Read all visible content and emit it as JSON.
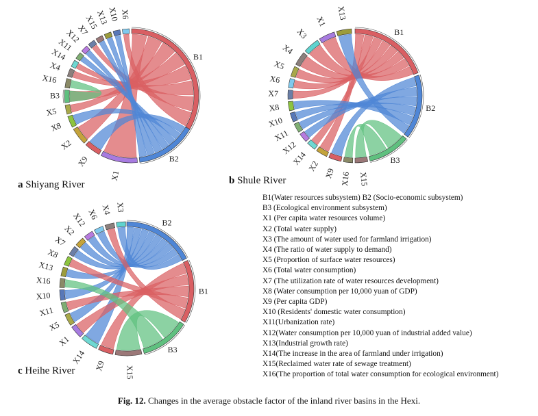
{
  "colors": {
    "B1": "#d95f63",
    "B2": "#4f86d6",
    "B3": "#5fc07f",
    "X1": "#a77be0",
    "X2": "#c4a33b",
    "X3": "#5fd3cf",
    "X4": "#8b7f7c",
    "X5": "#a8a84a",
    "X6": "#7fc9ee",
    "X7": "#6b7fa8",
    "X8": "#8dc43f",
    "X9": "#d95f63",
    "X10": "#5878b8",
    "X11": "#7fae73",
    "X12": "#b77be0",
    "X13": "#9c9c3c",
    "X14": "#6fd8d2",
    "X15": "#9b7878",
    "X16": "#8a8a66"
  },
  "panels": [
    {
      "id": "a",
      "letter": "a",
      "title": "Shiyang River",
      "segments": [
        {
          "name": "B1",
          "start": 0,
          "end": 120,
          "label": "B1"
        },
        {
          "name": "B2",
          "start": 120,
          "end": 173,
          "label": "B2"
        },
        {
          "name": "X1",
          "start": 175,
          "end": 207,
          "label": "X1"
        },
        {
          "name": "X9",
          "start": 209,
          "end": 223,
          "label": "X9"
        },
        {
          "name": "X2",
          "start": 225,
          "end": 240,
          "label": "X2"
        },
        {
          "name": "X8",
          "start": 242,
          "end": 252,
          "label": "X8"
        },
        {
          "name": "X5",
          "start": 254,
          "end": 262,
          "label": "X5"
        },
        {
          "name": "B3",
          "start": 264,
          "end": 275,
          "label": "B3"
        },
        {
          "name": "X16",
          "start": 277,
          "end": 285,
          "label": "X16"
        },
        {
          "name": "X4",
          "start": 287,
          "end": 294,
          "label": "X4"
        },
        {
          "name": "X14",
          "start": 296,
          "end": 302,
          "label": "X14"
        },
        {
          "name": "X11",
          "start": 304,
          "end": 310,
          "label": "X11"
        },
        {
          "name": "X12",
          "start": 312,
          "end": 318,
          "label": "X12"
        },
        {
          "name": "X7",
          "start": 320,
          "end": 326,
          "label": "X7"
        },
        {
          "name": "X15",
          "start": 328,
          "end": 334,
          "label": "X15"
        },
        {
          "name": "X13",
          "start": 336,
          "end": 342,
          "label": "X13"
        },
        {
          "name": "X10",
          "start": 344,
          "end": 350,
          "label": "X10"
        },
        {
          "name": "X6",
          "start": 352,
          "end": 358,
          "label": "X6"
        }
      ],
      "chords": [
        {
          "from": "X1",
          "to": "B1"
        },
        {
          "from": "X9",
          "to": "B2"
        },
        {
          "from": "X2",
          "to": "B1"
        },
        {
          "from": "X8",
          "to": "B2"
        },
        {
          "from": "X5",
          "to": "B1"
        },
        {
          "from": "B3",
          "to": "B1"
        },
        {
          "from": "X16",
          "to": "B3"
        },
        {
          "from": "X4",
          "to": "B1"
        },
        {
          "from": "X14",
          "to": "B1"
        },
        {
          "from": "X11",
          "to": "B2"
        },
        {
          "from": "X12",
          "to": "B2"
        },
        {
          "from": "X7",
          "to": "B1"
        },
        {
          "from": "X15",
          "to": "B2"
        },
        {
          "from": "X13",
          "to": "B2"
        },
        {
          "from": "X10",
          "to": "B2"
        },
        {
          "from": "X6",
          "to": "B1"
        }
      ]
    },
    {
      "id": "b",
      "letter": "b",
      "title": "Shule River",
      "segments": [
        {
          "name": "B1",
          "start": 0,
          "end": 70,
          "label": "B1"
        },
        {
          "name": "B2",
          "start": 72,
          "end": 128,
          "label": "B2"
        },
        {
          "name": "B3",
          "start": 130,
          "end": 167,
          "label": "B3"
        },
        {
          "name": "X15",
          "start": 169,
          "end": 180,
          "label": "X15"
        },
        {
          "name": "X16",
          "start": 182,
          "end": 190,
          "label": "X16"
        },
        {
          "name": "X9",
          "start": 192,
          "end": 203,
          "label": "X9"
        },
        {
          "name": "X2",
          "start": 205,
          "end": 215,
          "label": "X2"
        },
        {
          "name": "X14",
          "start": 217,
          "end": 225,
          "label": "X14"
        },
        {
          "name": "X12",
          "start": 227,
          "end": 235,
          "label": "X12"
        },
        {
          "name": "X11",
          "start": 237,
          "end": 245,
          "label": "X11"
        },
        {
          "name": "X10",
          "start": 247,
          "end": 255,
          "label": "X10"
        },
        {
          "name": "X8",
          "start": 257,
          "end": 265,
          "label": "X8"
        },
        {
          "name": "X7",
          "start": 267,
          "end": 275,
          "label": "X7"
        },
        {
          "name": "X6",
          "start": 277,
          "end": 285,
          "label": "X6"
        },
        {
          "name": "X5",
          "start": 287,
          "end": 296,
          "label": "X5"
        },
        {
          "name": "X4",
          "start": 298,
          "end": 310,
          "label": "X4"
        },
        {
          "name": "X3",
          "start": 312,
          "end": 326,
          "label": "X3"
        },
        {
          "name": "X1",
          "start": 328,
          "end": 342,
          "label": "X1"
        },
        {
          "name": "X13",
          "start": 344,
          "end": 357,
          "label": "X13"
        }
      ],
      "chords": [
        {
          "from": "X15",
          "to": "B3"
        },
        {
          "from": "X16",
          "to": "B3"
        },
        {
          "from": "X9",
          "to": "B2"
        },
        {
          "from": "X2",
          "to": "B1"
        },
        {
          "from": "X14",
          "to": "B1"
        },
        {
          "from": "X12",
          "to": "B2"
        },
        {
          "from": "X11",
          "to": "B2"
        },
        {
          "from": "X10",
          "to": "B2"
        },
        {
          "from": "X8",
          "to": "B2"
        },
        {
          "from": "X7",
          "to": "B1"
        },
        {
          "from": "X6",
          "to": "B1"
        },
        {
          "from": "X5",
          "to": "B1"
        },
        {
          "from": "X4",
          "to": "B1"
        },
        {
          "from": "X3",
          "to": "B1"
        },
        {
          "from": "X1",
          "to": "B1"
        },
        {
          "from": "X13",
          "to": "B2"
        }
      ]
    },
    {
      "id": "c",
      "letter": "c",
      "title": "Heihe River",
      "segments": [
        {
          "name": "B2",
          "start": 0,
          "end": 63,
          "label": "B2"
        },
        {
          "name": "B1",
          "start": 65,
          "end": 120,
          "label": "B1"
        },
        {
          "name": "B3",
          "start": 122,
          "end": 165,
          "label": "B3"
        },
        {
          "name": "X15",
          "start": 167,
          "end": 190,
          "label": "X15"
        },
        {
          "name": "X9",
          "start": 192,
          "end": 205,
          "label": "X9"
        },
        {
          "name": "X14",
          "start": 207,
          "end": 222,
          "label": "X14"
        },
        {
          "name": "X1",
          "start": 224,
          "end": 235,
          "label": "X1"
        },
        {
          "name": "X5",
          "start": 237,
          "end": 247,
          "label": "X5"
        },
        {
          "name": "X11",
          "start": 249,
          "end": 258,
          "label": "X11"
        },
        {
          "name": "X10",
          "start": 260,
          "end": 269,
          "label": "X10"
        },
        {
          "name": "X16",
          "start": 271,
          "end": 279,
          "label": "X16"
        },
        {
          "name": "X13",
          "start": 281,
          "end": 289,
          "label": "X13"
        },
        {
          "name": "X8",
          "start": 291,
          "end": 299,
          "label": "X8"
        },
        {
          "name": "X7",
          "start": 301,
          "end": 309,
          "label": "X7"
        },
        {
          "name": "X2",
          "start": 311,
          "end": 319,
          "label": "X2"
        },
        {
          "name": "X12",
          "start": 321,
          "end": 329,
          "label": "X12"
        },
        {
          "name": "X6",
          "start": 331,
          "end": 339,
          "label": "X6"
        },
        {
          "name": "X4",
          "start": 341,
          "end": 349,
          "label": "X4"
        },
        {
          "name": "X3",
          "start": 351,
          "end": 359,
          "label": "X3"
        }
      ],
      "chords": [
        {
          "from": "X15",
          "to": "B3"
        },
        {
          "from": "X9",
          "to": "B1"
        },
        {
          "from": "X14",
          "to": "B2"
        },
        {
          "from": "X1",
          "to": "B1"
        },
        {
          "from": "X5",
          "to": "B2"
        },
        {
          "from": "X11",
          "to": "B1"
        },
        {
          "from": "X10",
          "to": "B2"
        },
        {
          "from": "X16",
          "to": "B3"
        },
        {
          "from": "X13",
          "to": "B2"
        },
        {
          "from": "X8",
          "to": "B1"
        },
        {
          "from": "X7",
          "to": "B2"
        },
        {
          "from": "X2",
          "to": "B2"
        },
        {
          "from": "X12",
          "to": "B2"
        },
        {
          "from": "X6",
          "to": "B2"
        },
        {
          "from": "X4",
          "to": "B1"
        },
        {
          "from": "X3",
          "to": "B2"
        }
      ]
    }
  ],
  "legend": [
    "B1(Water resources subsystem) B2 (Socio-economic subsystem)",
    "B3 (Ecological environment subsystem)",
    "X1 (Per capita water resources volume)",
    "X2 (Total water supply)",
    "X3 (The amount of water used for farmland irrigation)",
    "X4 (The ratio of water supply to demand)",
    "X5 (Proportion of surface water resources)",
    "X6 (Total water consumption)",
    "X7 (The utilization rate of water resources development)",
    "X8 (Water consumption per 10,000 yuan of GDP)",
    "X9 (Per capita GDP)",
    "X10 (Residents' domestic water consumption)",
    "X11(Urbanization rate)",
    "X12(Water consumption per 10,000 yuan of industrial added value)",
    "X13(Industrial growth rate)",
    "X14(The increase in the area of farmland under irrigation)",
    "X15(Reclaimed water rate of sewage treatment)",
    "X16(The proportion of total water consumption for ecological environment)"
  ],
  "caption": {
    "label": "Fig. 12.",
    "text": "Changes in the average obstacle factor of the inland river basins in the Hexi."
  }
}
